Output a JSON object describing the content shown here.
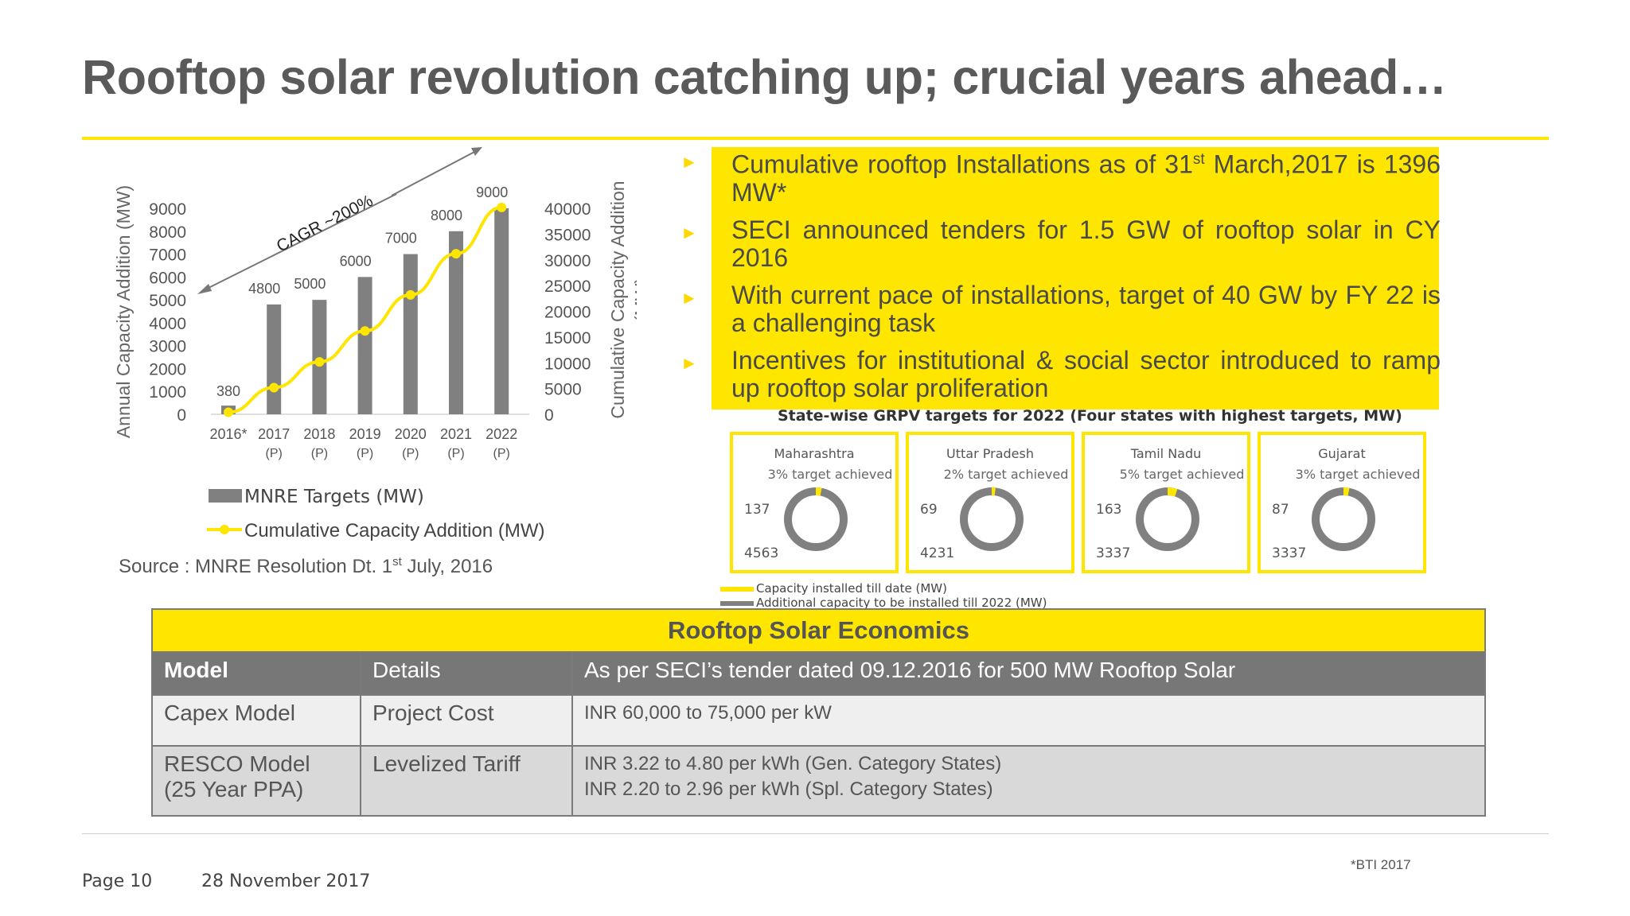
{
  "title": "Rooftop solar revolution catching up; crucial years ahead…",
  "chart_data": {
    "type": "bar",
    "categories": [
      "2016*",
      "2017 (P)",
      "2018 (P)",
      "2019 (P)",
      "2020 (P)",
      "2021 (P)",
      "2022 (P)"
    ],
    "category_lines": [
      [
        "2016*",
        ""
      ],
      [
        "2017",
        "(P)"
      ],
      [
        "2018",
        "(P)"
      ],
      [
        "2019",
        "(P)"
      ],
      [
        "2020",
        "(P)"
      ],
      [
        "2021",
        "(P)"
      ],
      [
        "2022",
        "(P)"
      ]
    ],
    "series": [
      {
        "name": "MNRE Targets (MW)",
        "type": "bar",
        "axis": "left",
        "color": "#808080",
        "values": [
          380,
          4800,
          5000,
          6000,
          7000,
          8000,
          9000
        ]
      },
      {
        "name": "Cumulative Capacity Addition (MW)",
        "type": "line",
        "axis": "right",
        "color": "#ffe600",
        "values": [
          380,
          5180,
          10180,
          16180,
          23180,
          31180,
          40180
        ]
      }
    ],
    "ylabel": "Annual Capacity Addition (MW)",
    "y2label_lines": [
      "Cumulative Capacity Addition",
      "(MW)"
    ],
    "ylim": [
      0,
      9000
    ],
    "y2lim": [
      0,
      40000
    ],
    "yticks": [
      0,
      1000,
      2000,
      3000,
      4000,
      5000,
      6000,
      7000,
      8000,
      9000
    ],
    "y2ticks": [
      0,
      5000,
      10000,
      15000,
      20000,
      25000,
      30000,
      35000,
      40000
    ],
    "annotation": "CAGR ~200%",
    "legend_position": "bottom"
  },
  "source": {
    "prefix": "Source : MNRE Resolution Dt. 1",
    "sup": "st",
    "suffix": " July, 2016"
  },
  "bullets": [
    {
      "pre": "Cumulative rooftop Installations as of 31",
      "sup": "st",
      "post": " March,2017 is 1396 MW*"
    },
    {
      "pre": "SECI announced  tenders for 1.5 GW of rooftop solar in CY 2016",
      "sup": "",
      "post": ""
    },
    {
      "pre": "With current pace of installations, target of 40 GW by FY 22 is a challenging task",
      "sup": "",
      "post": ""
    },
    {
      "pre": "Incentives for institutional & social sector introduced to ramp up rooftop solar proliferation",
      "sup": "",
      "post": ""
    }
  ],
  "state_targets": {
    "title": "State-wise GRPV targets for 2022 (Four states with highest targets, MW)",
    "states": [
      {
        "name": "Maharashtra",
        "achieved": "3% target achieved",
        "pct": 3,
        "installed": "137",
        "additional": "4563"
      },
      {
        "name": "Uttar Pradesh",
        "achieved": "2% target achieved",
        "pct": 2,
        "installed": "69",
        "additional": "4231"
      },
      {
        "name": "Tamil Nadu",
        "achieved": "5% target achieved",
        "pct": 5,
        "installed": "163",
        "additional": "3337"
      },
      {
        "name": "Gujarat",
        "achieved": "3% target achieved",
        "pct": 3,
        "installed": "87",
        "additional": "3337"
      }
    ],
    "legend": [
      {
        "label": "Capacity installed till date (MW)",
        "color": "#ffe600"
      },
      {
        "label": "Additional capacity to be installed till 2022 (MW)",
        "color": "#808080"
      }
    ]
  },
  "economics": {
    "title": "Rooftop Solar Economics",
    "header": [
      "Model",
      "Details",
      "As per SECI’s tender dated 09.12.2016 for 500 MW Rooftop Solar"
    ],
    "rows": [
      {
        "model": [
          "Capex Model"
        ],
        "detail": "Project Cost",
        "values": [
          "INR 60,000 to 75,000 per kW"
        ]
      },
      {
        "model": [
          "RESCO Model",
          "(25 Year PPA)"
        ],
        "detail": "Levelized Tariff",
        "values": [
          "INR 3.22 to 4.80 per kWh (Gen. Category States)",
          "INR 2.20 to 2.96 per kWh (Spl. Category States)"
        ]
      }
    ]
  },
  "footer": {
    "page": "Page 10",
    "date": "28 November 2017",
    "note": "*BTI 2017"
  }
}
